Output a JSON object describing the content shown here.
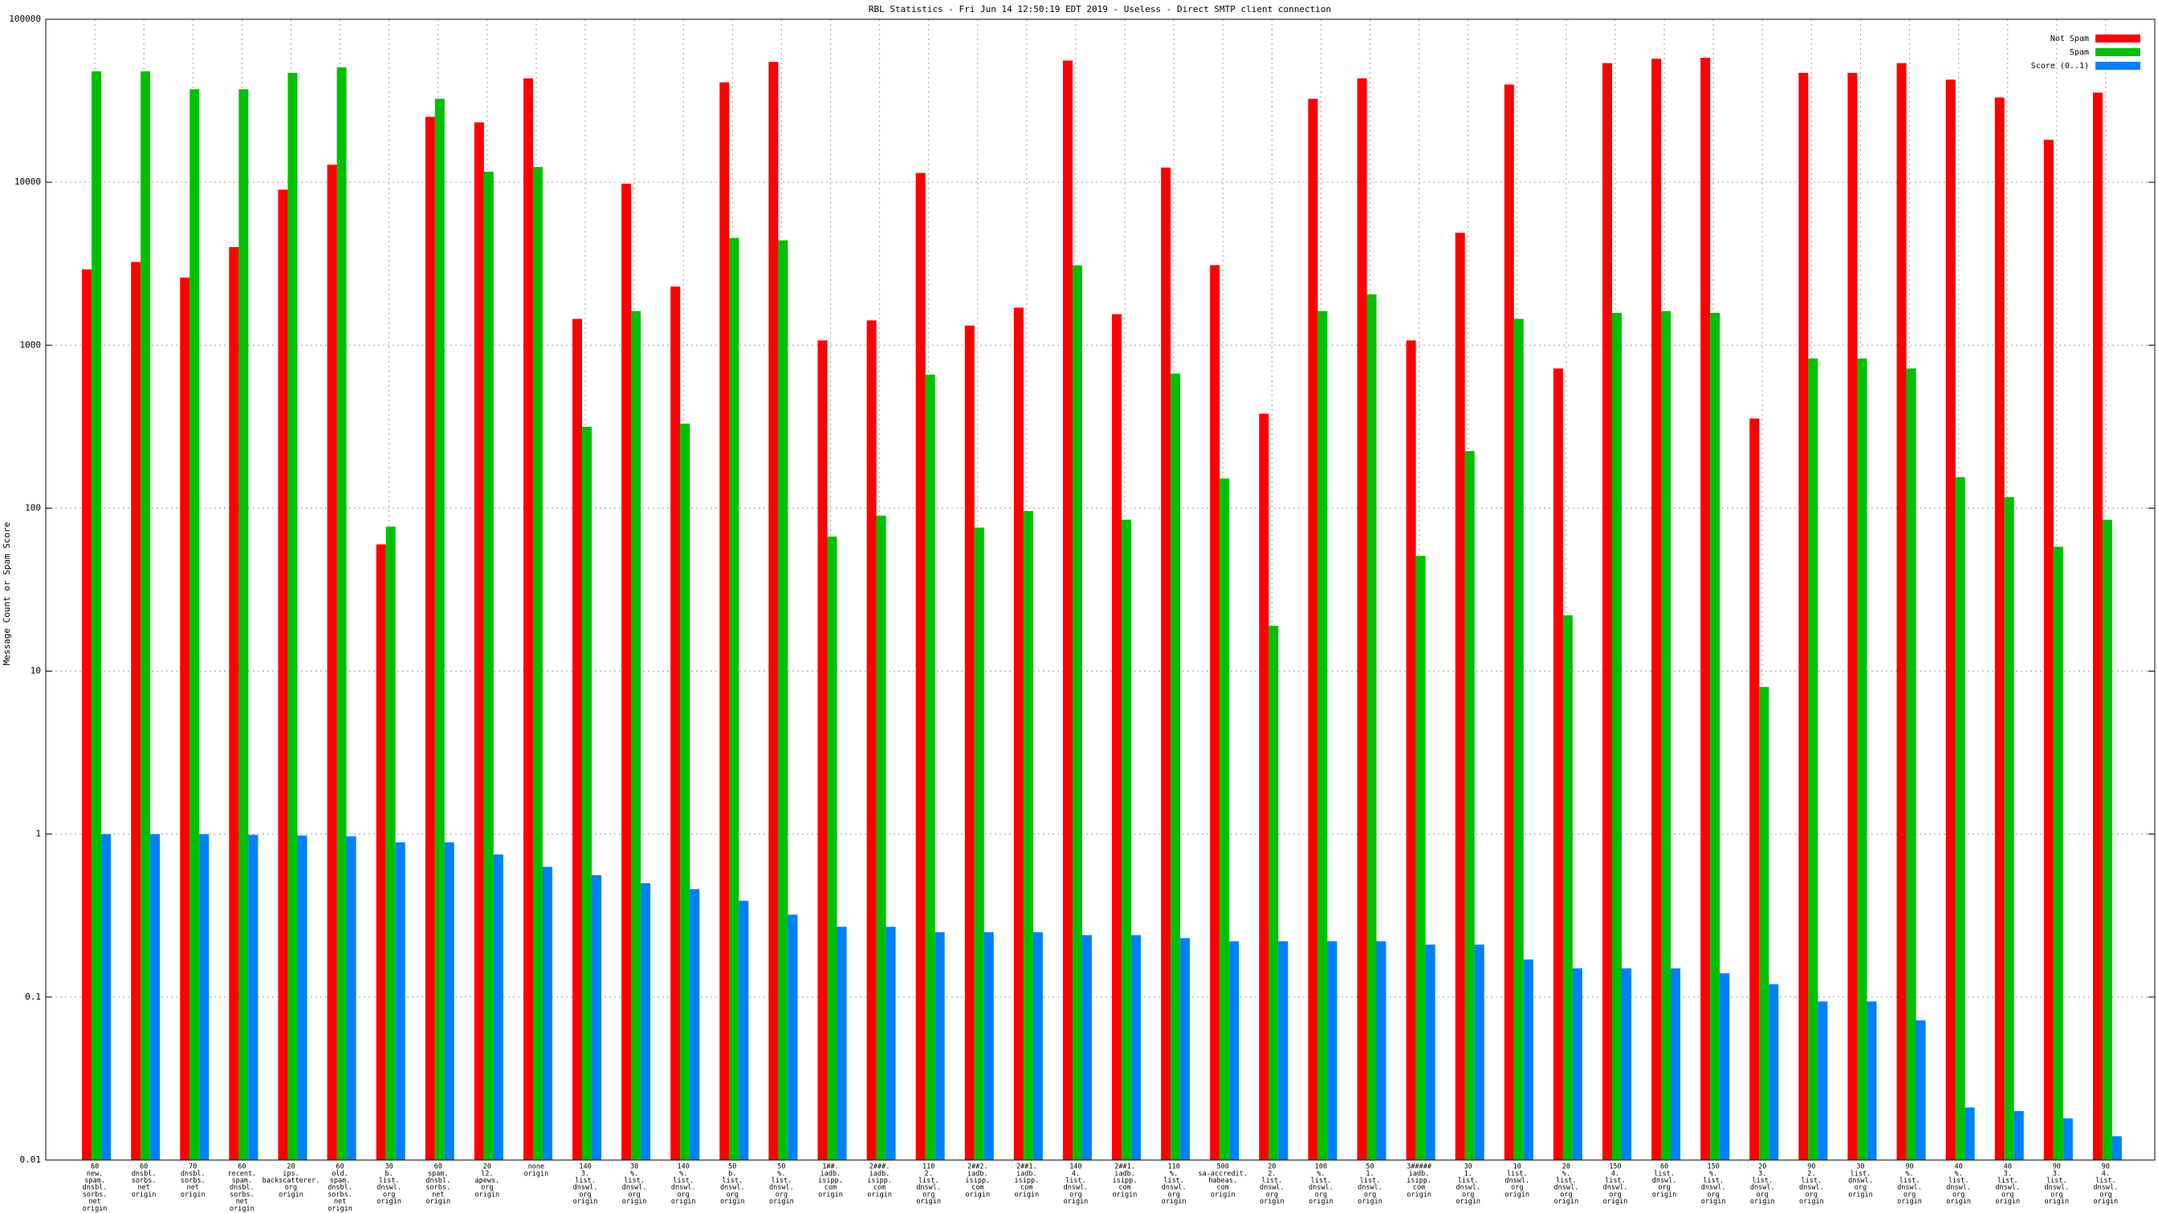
{
  "chart_data": {
    "type": "bar",
    "title": "RBL Statistics - Fri Jun 14 12:50:19 EDT 2019 - Useless - Direct SMTP client connection",
    "y_label": "Message Count or Spam Score",
    "log_scale": true,
    "grid": true,
    "legend": "upper right",
    "ylim": [
      0.01,
      100000
    ],
    "yticks": [
      0.01,
      0.1,
      1,
      10,
      100,
      1000,
      10000,
      100000
    ],
    "categories": [
      [
        "60",
        "new.",
        "spam.",
        "dnsbl.",
        "sorbs.",
        "net",
        "origin"
      ],
      [
        "60",
        "dnsbl.",
        "sorbs.",
        "net",
        "origin"
      ],
      [
        "70",
        "dnsbl.",
        "sorbs.",
        "net",
        "origin"
      ],
      [
        "60",
        "recent.",
        "spam.",
        "dnsbl.",
        "sorbs.",
        "net",
        "origin"
      ],
      [
        "20",
        "ips.",
        "backscatterer.",
        "org",
        "origin"
      ],
      [
        "60",
        "old.",
        "spam.",
        "dnsbl.",
        "sorbs.",
        "net",
        "origin"
      ],
      [
        "30",
        "b.",
        "list.",
        "dnswl.",
        "org",
        "origin"
      ],
      [
        "60",
        "spam.",
        "dnsbl.",
        "sorbs.",
        "net",
        "origin"
      ],
      [
        "20",
        "l2.",
        "apews.",
        "org",
        "origin"
      ],
      [
        "none",
        "origin"
      ],
      [
        "140",
        "3.",
        "list.",
        "dnswl.",
        "org",
        "origin"
      ],
      [
        "30",
        "%.",
        "list.",
        "dnswl.",
        "org",
        "origin"
      ],
      [
        "140",
        "%.",
        "list.",
        "dnswl.",
        "org",
        "origin"
      ],
      [
        "50",
        "b.",
        "list.",
        "dnswl.",
        "org",
        "origin"
      ],
      [
        "50",
        "%.",
        "list.",
        "dnswl.",
        "org",
        "origin"
      ],
      [
        "1##.",
        "iadb.",
        "isipp.",
        "com",
        "origin"
      ],
      [
        "2###.",
        "iadb.",
        "isipp.",
        "com",
        "origin"
      ],
      [
        "110",
        "2.",
        "list.",
        "dnswl.",
        "org",
        "origin"
      ],
      [
        "2##2.",
        "iadb.",
        "isipp.",
        "com",
        "origin"
      ],
      [
        "2##1.",
        "iadb.",
        "isipp.",
        "com",
        "origin"
      ],
      [
        "140",
        "4.",
        "list.",
        "dnswl.",
        "org",
        "origin"
      ],
      [
        "2##1.",
        "iadb.",
        "isipp.",
        "com",
        "origin"
      ],
      [
        "110",
        "%.",
        "list.",
        "dnswl.",
        "org",
        "origin"
      ],
      [
        "500",
        "sa-accredit.",
        "habeas.",
        "com",
        "origin"
      ],
      [
        "20",
        "2.",
        "list.",
        "dnswl.",
        "org",
        "origin"
      ],
      [
        "100",
        "%.",
        "list.",
        "dnswl.",
        "org",
        "origin"
      ],
      [
        "50",
        "1.",
        "list.",
        "dnswl.",
        "org",
        "origin"
      ],
      [
        "3#####",
        "iadb.",
        "isipp.",
        "com",
        "origin"
      ],
      [
        "30",
        "1.",
        "list.",
        "dnswl.",
        "org",
        "origin"
      ],
      [
        "10",
        "list.",
        "dnswl.",
        "org",
        "origin"
      ],
      [
        "20",
        "%.",
        "list.",
        "dnswl.",
        "org",
        "origin"
      ],
      [
        "150",
        "4.",
        "list.",
        "dnswl.",
        "org",
        "origin"
      ],
      [
        "60",
        "list.",
        "dnswl.",
        "org",
        "origin"
      ],
      [
        "150",
        "%.",
        "list.",
        "dnswl.",
        "org",
        "origin"
      ],
      [
        "20",
        "3.",
        "list.",
        "dnswl.",
        "org",
        "origin"
      ],
      [
        "90",
        "2.",
        "list.",
        "dnswl.",
        "org",
        "origin"
      ],
      [
        "30",
        "list.",
        "dnswl.",
        "org",
        "origin"
      ],
      [
        "90",
        "%.",
        "list.",
        "dnswl.",
        "org",
        "origin"
      ],
      [
        "40",
        "%.",
        "list.",
        "dnswl.",
        "org",
        "origin"
      ],
      [
        "40",
        "3.",
        "list.",
        "dnswl.",
        "org",
        "origin"
      ],
      [
        "90",
        "3.",
        "list.",
        "dnswl.",
        "org",
        "origin"
      ],
      [
        "90",
        "4.",
        "list.",
        "dnswl.",
        "org",
        "origin"
      ]
    ],
    "series": [
      {
        "name": "Not Spam",
        "color": "#ff0000",
        "values": [
          2920,
          3240,
          2600,
          4000,
          9000,
          12800,
          60,
          25200,
          23300,
          43400,
          1450,
          9800,
          2290,
          41000,
          54700,
          1070,
          1420,
          11400,
          1320,
          1700,
          55800,
          1550,
          12300,
          3100,
          380,
          32500,
          43400,
          1070,
          4900,
          39800,
          720,
          53800,
          57200,
          58000,
          355,
          46900,
          46900,
          53800,
          42600,
          33100,
          18200,
          35500
        ]
      },
      {
        "name": "Spam",
        "color": "#00c000",
        "values": [
          47900,
          47900,
          37200,
          37200,
          46900,
          50700,
          77,
          32500,
          11600,
          12400,
          316,
          1620,
          330,
          4550,
          4400,
          67,
          90,
          660,
          76,
          96,
          3090,
          85,
          670,
          152,
          19,
          1620,
          2050,
          51,
          224,
          1450,
          22,
          1580,
          1620,
          1580,
          8,
          830,
          830,
          720,
          155,
          117,
          58,
          85
        ]
      },
      {
        "name": "Score (0..1)",
        "color": "#0080ff",
        "values": [
          1.0,
          1.0,
          1.0,
          0.99,
          0.98,
          0.97,
          0.89,
          0.89,
          0.75,
          0.63,
          0.56,
          0.5,
          0.46,
          0.39,
          0.32,
          0.27,
          0.27,
          0.25,
          0.25,
          0.25,
          0.24,
          0.24,
          0.23,
          0.22,
          0.22,
          0.22,
          0.22,
          0.21,
          0.21,
          0.17,
          0.15,
          0.15,
          0.15,
          0.14,
          0.12,
          0.094,
          0.094,
          0.072,
          0.021,
          0.02,
          0.018,
          0.014
        ]
      }
    ]
  }
}
